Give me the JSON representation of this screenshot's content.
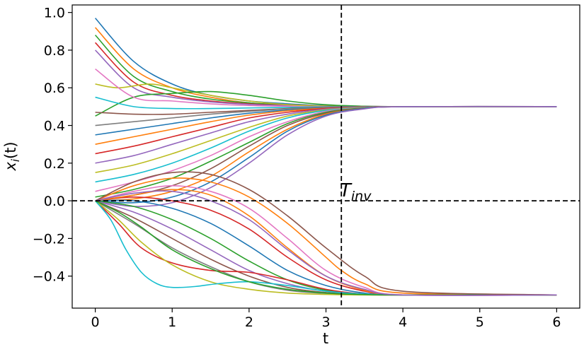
{
  "chart_data": {
    "type": "line",
    "title": "",
    "xlabel": "t",
    "ylabel_main": "x",
    "ylabel_sub": "i",
    "ylabel_tail": "(t)",
    "xlim": [
      -0.3,
      6.3
    ],
    "ylim": [
      -0.57,
      1.04
    ],
    "xticks": [
      0,
      1,
      2,
      3,
      4,
      5,
      6
    ],
    "xtick_labels": [
      "0",
      "1",
      "2",
      "3",
      "4",
      "5",
      "6"
    ],
    "yticks": [
      -0.4,
      -0.2,
      0.0,
      0.2,
      0.4,
      0.6,
      0.8,
      1.0
    ],
    "ytick_labels": [
      "−0.4",
      "−0.2",
      "0.0",
      "0.2",
      "0.4",
      "0.6",
      "0.8",
      "1.0"
    ],
    "grid": false,
    "legend": "none",
    "annotation": {
      "text_main": "T",
      "text_sub": "inv",
      "x": 3.2,
      "y": 0.0
    },
    "reference_lines": [
      {
        "orientation": "vertical",
        "value": 3.2,
        "style": "dashed",
        "color": "#000000"
      },
      {
        "orientation": "horizontal",
        "value": 0.0,
        "style": "dashed",
        "color": "#000000"
      }
    ],
    "color_cycle": [
      "#1f77b4",
      "#ff7f0e",
      "#2ca02c",
      "#d62728",
      "#9467bd",
      "#8c564b",
      "#e377c2",
      "#7f7f7f",
      "#bcbd22",
      "#17becf"
    ],
    "series": [
      {
        "color": "#1f77b4",
        "x": [
          0,
          0.5,
          1,
          1.5,
          2,
          2.5,
          3,
          3.5,
          4,
          5,
          6
        ],
        "y": [
          0.97,
          0.74,
          0.62,
          0.56,
          0.53,
          0.515,
          0.505,
          0.502,
          0.5,
          0.5,
          0.5
        ]
      },
      {
        "color": "#ff7f0e",
        "x": [
          0,
          0.5,
          1,
          1.5,
          2,
          2.5,
          3,
          3.5,
          4,
          5,
          6
        ],
        "y": [
          0.92,
          0.7,
          0.6,
          0.55,
          0.52,
          0.51,
          0.503,
          0.501,
          0.5,
          0.5,
          0.5
        ]
      },
      {
        "color": "#2ca02c",
        "x": [
          0,
          0.5,
          1,
          1.5,
          2,
          2.5,
          3,
          3.5,
          4,
          5,
          6
        ],
        "y": [
          0.88,
          0.66,
          0.58,
          0.54,
          0.52,
          0.508,
          0.502,
          0.5,
          0.5,
          0.5,
          0.5
        ]
      },
      {
        "color": "#d62728",
        "x": [
          0,
          0.5,
          1,
          1.5,
          2,
          2.5,
          3,
          3.5,
          4,
          5,
          6
        ],
        "y": [
          0.84,
          0.63,
          0.56,
          0.53,
          0.515,
          0.506,
          0.501,
          0.5,
          0.5,
          0.5,
          0.5
        ]
      },
      {
        "color": "#9467bd",
        "x": [
          0,
          0.5,
          1,
          1.5,
          2,
          2.5,
          3,
          3.5,
          4,
          5,
          6
        ],
        "y": [
          0.8,
          0.6,
          0.55,
          0.525,
          0.512,
          0.505,
          0.501,
          0.5,
          0.5,
          0.5,
          0.5
        ]
      },
      {
        "color": "#bcbd22",
        "x": [
          0,
          0.3,
          0.7,
          1,
          1.5,
          2,
          2.5,
          3,
          3.5,
          4,
          6
        ],
        "y": [
          0.62,
          0.6,
          0.62,
          0.6,
          0.56,
          0.53,
          0.51,
          0.502,
          0.5,
          0.5,
          0.5
        ]
      },
      {
        "color": "#2ca02c",
        "x": [
          0,
          0.5,
          1,
          1.5,
          2,
          2.5,
          3,
          3.5,
          4,
          6
        ],
        "y": [
          0.45,
          0.55,
          0.57,
          0.58,
          0.56,
          0.53,
          0.51,
          0.502,
          0.5,
          0.5
        ]
      },
      {
        "color": "#e377c2",
        "x": [
          0,
          0.5,
          1,
          1.5,
          2,
          2.5,
          3,
          3.5,
          4,
          6
        ],
        "y": [
          0.7,
          0.55,
          0.53,
          0.515,
          0.506,
          0.502,
          0.5,
          0.5,
          0.5,
          0.5
        ]
      },
      {
        "color": "#17becf",
        "x": [
          0,
          0.5,
          1,
          1.5,
          2,
          2.5,
          3,
          3.5,
          4,
          6
        ],
        "y": [
          0.55,
          0.5,
          0.49,
          0.49,
          0.493,
          0.496,
          0.499,
          0.5,
          0.5,
          0.5
        ]
      },
      {
        "color": "#8c564b",
        "x": [
          0,
          0.5,
          1,
          1.5,
          2,
          2.5,
          3,
          3.5,
          4,
          6
        ],
        "y": [
          0.47,
          0.46,
          0.46,
          0.47,
          0.48,
          0.49,
          0.497,
          0.5,
          0.5,
          0.5
        ]
      },
      {
        "color": "#7f7f7f",
        "x": [
          0,
          0.5,
          1,
          1.5,
          2,
          2.5,
          3,
          3.5,
          4,
          6
        ],
        "y": [
          0.4,
          0.42,
          0.44,
          0.46,
          0.475,
          0.488,
          0.496,
          0.499,
          0.5,
          0.5
        ]
      },
      {
        "color": "#1f77b4",
        "x": [
          0,
          0.5,
          1,
          1.5,
          2,
          2.5,
          3,
          3.5,
          4,
          6
        ],
        "y": [
          0.35,
          0.38,
          0.41,
          0.44,
          0.465,
          0.482,
          0.494,
          0.499,
          0.5,
          0.5
        ]
      },
      {
        "color": "#ff7f0e",
        "x": [
          0,
          0.5,
          1,
          1.5,
          2,
          2.5,
          3,
          3.5,
          4,
          6
        ],
        "y": [
          0.3,
          0.34,
          0.38,
          0.42,
          0.455,
          0.478,
          0.492,
          0.498,
          0.5,
          0.5
        ]
      },
      {
        "color": "#d62728",
        "x": [
          0,
          0.5,
          1,
          1.5,
          2,
          2.5,
          3,
          3.5,
          4,
          6
        ],
        "y": [
          0.25,
          0.29,
          0.34,
          0.39,
          0.44,
          0.47,
          0.49,
          0.498,
          0.5,
          0.5
        ]
      },
      {
        "color": "#9467bd",
        "x": [
          0,
          0.5,
          1,
          1.5,
          2,
          2.5,
          3,
          3.5,
          4,
          6
        ],
        "y": [
          0.2,
          0.24,
          0.3,
          0.36,
          0.42,
          0.46,
          0.487,
          0.497,
          0.5,
          0.5
        ]
      },
      {
        "color": "#bcbd22",
        "x": [
          0,
          0.5,
          1,
          1.5,
          2,
          2.5,
          3,
          3.5,
          4,
          6
        ],
        "y": [
          0.15,
          0.19,
          0.25,
          0.32,
          0.39,
          0.45,
          0.483,
          0.496,
          0.5,
          0.5
        ]
      },
      {
        "color": "#17becf",
        "x": [
          0,
          0.5,
          1,
          1.5,
          2,
          2.5,
          3,
          3.5,
          4,
          6
        ],
        "y": [
          0.1,
          0.14,
          0.2,
          0.28,
          0.37,
          0.44,
          0.48,
          0.495,
          0.5,
          0.5
        ]
      },
      {
        "color": "#e377c2",
        "x": [
          0,
          0.5,
          1,
          1.5,
          2,
          2.5,
          3,
          3.5,
          4,
          6
        ],
        "y": [
          0.05,
          0.1,
          0.16,
          0.24,
          0.34,
          0.42,
          0.475,
          0.494,
          0.5,
          0.5
        ]
      },
      {
        "color": "#2ca02c",
        "x": [
          0,
          0.5,
          1,
          1.5,
          2,
          2.5,
          3,
          3.5,
          4,
          6
        ],
        "y": [
          0.02,
          0.06,
          0.12,
          0.21,
          0.31,
          0.41,
          0.47,
          0.493,
          0.5,
          0.5
        ]
      },
      {
        "color": "#8c564b",
        "x": [
          0,
          0.5,
          1,
          1.5,
          2,
          2.5,
          3,
          3.5,
          4,
          6
        ],
        "y": [
          0.0,
          0.03,
          0.08,
          0.17,
          0.29,
          0.4,
          0.465,
          0.492,
          0.5,
          0.5
        ]
      },
      {
        "color": "#ff7f0e",
        "x": [
          0,
          0.5,
          1,
          1.5,
          2,
          2.5,
          3,
          3.5,
          4,
          6
        ],
        "y": [
          0.0,
          0.01,
          0.05,
          0.13,
          0.26,
          0.38,
          0.46,
          0.49,
          0.5,
          0.5
        ]
      },
      {
        "color": "#1f77b4",
        "x": [
          0,
          0.5,
          1,
          1.5,
          2,
          2.5,
          3,
          3.5,
          4,
          6
        ],
        "y": [
          0.0,
          -0.01,
          0.02,
          0.1,
          0.23,
          0.37,
          0.455,
          0.49,
          0.5,
          0.5
        ]
      },
      {
        "color": "#9467bd",
        "x": [
          0,
          0.5,
          1,
          1.5,
          2,
          2.5,
          3,
          3.5,
          4,
          6
        ],
        "y": [
          0.0,
          -0.03,
          -0.01,
          0.07,
          0.2,
          0.35,
          0.45,
          0.488,
          0.5,
          0.5
        ]
      },
      {
        "color": "#d62728",
        "x": [
          0,
          0.5,
          1,
          1.5,
          2,
          2.5,
          3,
          3.5,
          4,
          6
        ],
        "y": [
          0.0,
          0.02,
          0.0,
          -0.05,
          -0.15,
          -0.3,
          -0.42,
          -0.48,
          -0.5,
          -0.5
        ]
      },
      {
        "color": "#1f77b4",
        "x": [
          0,
          0.5,
          1,
          1.5,
          2,
          2.5,
          3,
          3.5,
          4,
          6
        ],
        "y": [
          0.0,
          0.0,
          -0.04,
          -0.12,
          -0.24,
          -0.37,
          -0.45,
          -0.49,
          -0.5,
          -0.5
        ]
      },
      {
        "color": "#ff7f0e",
        "x": [
          0,
          0.5,
          1,
          1.5,
          2,
          2.5,
          3,
          3.5,
          4,
          6
        ],
        "y": [
          0.0,
          0.03,
          0.06,
          0.03,
          -0.08,
          -0.25,
          -0.4,
          -0.475,
          -0.5,
          -0.5
        ]
      },
      {
        "color": "#2ca02c",
        "x": [
          0,
          0.5,
          1,
          1.5,
          2,
          2.5,
          3,
          3.5,
          4,
          6
        ],
        "y": [
          0.0,
          -0.03,
          -0.1,
          -0.2,
          -0.32,
          -0.42,
          -0.475,
          -0.495,
          -0.5,
          -0.5
        ]
      },
      {
        "color": "#9467bd",
        "x": [
          0,
          0.5,
          1,
          1.5,
          2,
          2.5,
          3,
          3.5,
          4,
          6
        ],
        "y": [
          0.0,
          -0.06,
          -0.15,
          -0.26,
          -0.37,
          -0.44,
          -0.48,
          -0.497,
          -0.5,
          -0.5
        ]
      },
      {
        "color": "#8c564b",
        "x": [
          0,
          0.5,
          1,
          1.5,
          2,
          2.5,
          3,
          3.5,
          4,
          6
        ],
        "y": [
          0.0,
          -0.09,
          -0.2,
          -0.31,
          -0.4,
          -0.46,
          -0.487,
          -0.498,
          -0.5,
          -0.5
        ]
      },
      {
        "color": "#e377c2",
        "x": [
          0,
          0.5,
          1,
          1.5,
          2,
          2.5,
          3,
          3.5,
          4,
          6
        ],
        "y": [
          0.0,
          0.05,
          0.08,
          0.05,
          -0.04,
          -0.2,
          -0.37,
          -0.46,
          -0.5,
          -0.5
        ]
      },
      {
        "color": "#ff7f0e",
        "x": [
          0,
          0.5,
          1,
          1.5,
          2,
          2.5,
          3,
          3.2,
          3.5,
          4,
          6
        ],
        "y": [
          0.0,
          0.08,
          0.12,
          0.1,
          0.02,
          -0.12,
          -0.3,
          -0.37,
          -0.44,
          -0.49,
          -0.5
        ]
      },
      {
        "color": "#7f7f7f",
        "x": [
          0,
          0.5,
          1,
          1.5,
          2,
          2.5,
          3,
          3.5,
          4,
          6
        ],
        "y": [
          0.0,
          -0.12,
          -0.25,
          -0.35,
          -0.43,
          -0.475,
          -0.492,
          -0.499,
          -0.5,
          -0.5
        ]
      },
      {
        "color": "#d62728",
        "x": [
          0,
          0.3,
          0.6,
          1,
          1.5,
          2,
          2.5,
          3,
          3.5,
          4,
          6
        ],
        "y": [
          0.0,
          -0.12,
          -0.25,
          -0.33,
          -0.37,
          -0.38,
          -0.42,
          -0.47,
          -0.495,
          -0.5,
          -0.5
        ]
      },
      {
        "color": "#bcbd22",
        "x": [
          0,
          0.3,
          0.6,
          1,
          1.5,
          2,
          2.5,
          3,
          3.5,
          4,
          6
        ],
        "y": [
          0.0,
          -0.1,
          -0.22,
          -0.34,
          -0.43,
          -0.47,
          -0.49,
          -0.497,
          -0.5,
          -0.5,
          -0.5
        ]
      },
      {
        "color": "#17becf",
        "x": [
          0,
          0.2,
          0.4,
          0.6,
          0.8,
          1,
          1.3,
          1.6,
          2,
          2.5,
          3,
          3.5,
          4,
          6
        ],
        "y": [
          0.0,
          -0.1,
          -0.26,
          -0.38,
          -0.44,
          -0.46,
          -0.455,
          -0.44,
          -0.43,
          -0.45,
          -0.48,
          -0.495,
          -0.5,
          -0.5
        ]
      },
      {
        "color": "#2ca02c",
        "x": [
          0,
          0.3,
          0.6,
          1,
          1.5,
          2,
          2.5,
          3,
          3.5,
          4,
          6
        ],
        "y": [
          0.0,
          -0.06,
          -0.14,
          -0.26,
          -0.36,
          -0.43,
          -0.47,
          -0.49,
          -0.498,
          -0.5,
          -0.5
        ]
      },
      {
        "color": "#8c564b",
        "x": [
          0,
          0.5,
          1,
          1.5,
          2,
          2.5,
          3,
          3.5,
          4,
          6
        ],
        "y": [
          0.0,
          0.1,
          0.15,
          0.14,
          0.06,
          -0.08,
          -0.25,
          -0.4,
          -0.48,
          -0.5
        ]
      },
      {
        "color": "#9467bd",
        "x": [
          0,
          0.5,
          1,
          1.5,
          2,
          2.5,
          3,
          3.5,
          4,
          6
        ],
        "y": [
          0.0,
          0.04,
          0.05,
          0.0,
          -0.1,
          -0.26,
          -0.4,
          -0.47,
          -0.5,
          -0.5
        ]
      }
    ]
  }
}
